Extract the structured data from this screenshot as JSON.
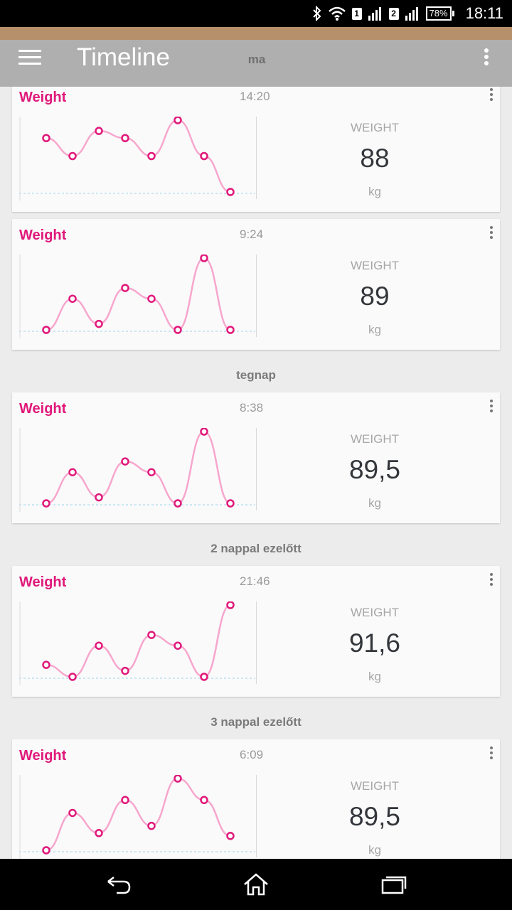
{
  "status_bar": {
    "time": "18:11",
    "battery": "78%",
    "sim1": "1",
    "sim2": "2",
    "icons": [
      "bluetooth-icon",
      "wifi-icon",
      "signal-icon",
      "battery-icon"
    ]
  },
  "app_bar": {
    "title": "Timeline",
    "menu_icon": "hamburger-menu-icon",
    "overflow_icon": "overflow-menu-icon"
  },
  "sections": {
    "today": "ma",
    "yesterday": "tegnap",
    "two_days": "2 nappal ezelőtt",
    "three_days": "3 nappal ezelőtt"
  },
  "cards": [
    {
      "title": "Weight",
      "time": "14:20",
      "label": "WEIGHT",
      "value": "88",
      "unit": "kg",
      "trend": [
        89.5,
        89,
        89.7,
        89.5,
        89,
        90,
        89,
        88
      ]
    },
    {
      "title": "Weight",
      "time": "9:24",
      "label": "WEIGHT",
      "value": "89",
      "unit": "kg",
      "trend": [
        89,
        91.6,
        89.5,
        92.5,
        91.6,
        89,
        95,
        89
      ]
    },
    {
      "title": "Weight",
      "time": "8:38",
      "label": "WEIGHT",
      "value": "89,5",
      "unit": "kg",
      "trend": [
        89,
        91.6,
        89.5,
        92.5,
        91.6,
        89,
        95,
        89
      ]
    },
    {
      "title": "Weight",
      "time": "21:46",
      "label": "WEIGHT",
      "value": "91,6",
      "unit": "kg",
      "trend": [
        90,
        89,
        91.6,
        89.5,
        92.5,
        91.6,
        89,
        95
      ]
    },
    {
      "title": "Weight",
      "time": "6:09",
      "label": "WEIGHT",
      "value": "89,5",
      "unit": "kg",
      "trend": [
        89,
        91.6,
        90.2,
        92.5,
        90.7,
        94,
        92.5,
        90
      ]
    }
  ],
  "colors": {
    "accent": "#e0197a",
    "trend_line": "#f7a6cd",
    "baseline": "#9fd3ef",
    "app_bar": "#aaaaaa",
    "status_tan": "#b5906a"
  },
  "nav": {
    "back_icon": "back-icon",
    "home_icon": "home-icon",
    "recents_icon": "recents-icon"
  }
}
